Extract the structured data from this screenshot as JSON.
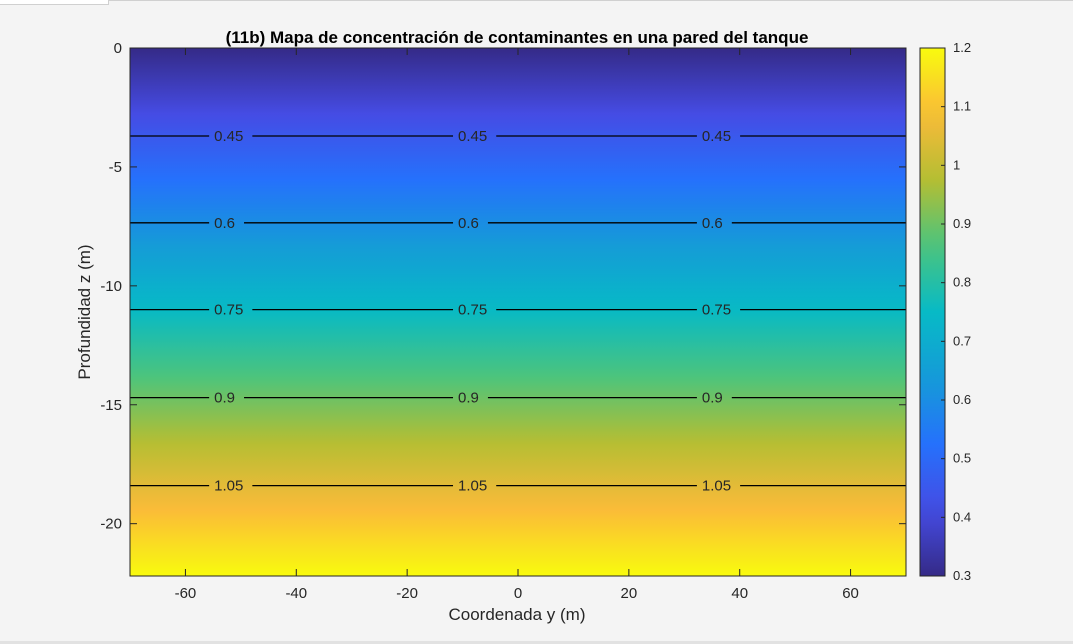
{
  "chart_data": {
    "type": "heatmap",
    "title": "(11b) Mapa de concentración de contaminantes en una pared del tanque",
    "xlabel": "Coordenada y (m)",
    "ylabel": "Profundidad z (m)",
    "xlim": [
      -70,
      70
    ],
    "ylim": [
      -22.2,
      0
    ],
    "xticks": [
      -60,
      -40,
      -20,
      0,
      20,
      40,
      60
    ],
    "xtick_labels": [
      "-60",
      "-40",
      "-20",
      "0",
      "20",
      "40",
      "60"
    ],
    "yticks": [
      0,
      -5,
      -10,
      -15,
      -20
    ],
    "ytick_labels": [
      "0",
      "-5",
      "-10",
      "-15",
      "-20"
    ],
    "colormap": "parula",
    "clim": [
      0.3,
      1.2
    ],
    "colorbar_ticks": [
      0.3,
      0.4,
      0.5,
      0.6,
      0.7,
      0.8,
      0.9,
      1,
      1.1,
      1.2
    ],
    "colorbar_tick_labels": [
      "0.3",
      "0.4",
      "0.5",
      "0.6",
      "0.7",
      "0.8",
      "0.9",
      "1",
      "1.1",
      "1.2"
    ],
    "field_profile": {
      "z": [
        0,
        -3.7,
        -7.35,
        -11.0,
        -14.7,
        -18.4,
        -22.2
      ],
      "value": [
        0.3,
        0.45,
        0.6,
        0.75,
        0.9,
        1.05,
        1.2
      ]
    },
    "contours": [
      {
        "level": 0.45,
        "z": -3.7,
        "label": "0.45",
        "label_x": [
          -55,
          -11,
          33
        ]
      },
      {
        "level": 0.6,
        "z": -7.35,
        "label": "0.6",
        "label_x": [
          -55,
          -11,
          33
        ]
      },
      {
        "level": 0.75,
        "z": -11.0,
        "label": "0.75",
        "label_x": [
          -55,
          -11,
          33
        ]
      },
      {
        "level": 0.9,
        "z": -14.7,
        "label": "0.9",
        "label_x": [
          -55,
          -11,
          33
        ]
      },
      {
        "level": 1.05,
        "z": -18.4,
        "label": "1.05",
        "label_x": [
          -55,
          -11,
          33
        ]
      }
    ]
  }
}
